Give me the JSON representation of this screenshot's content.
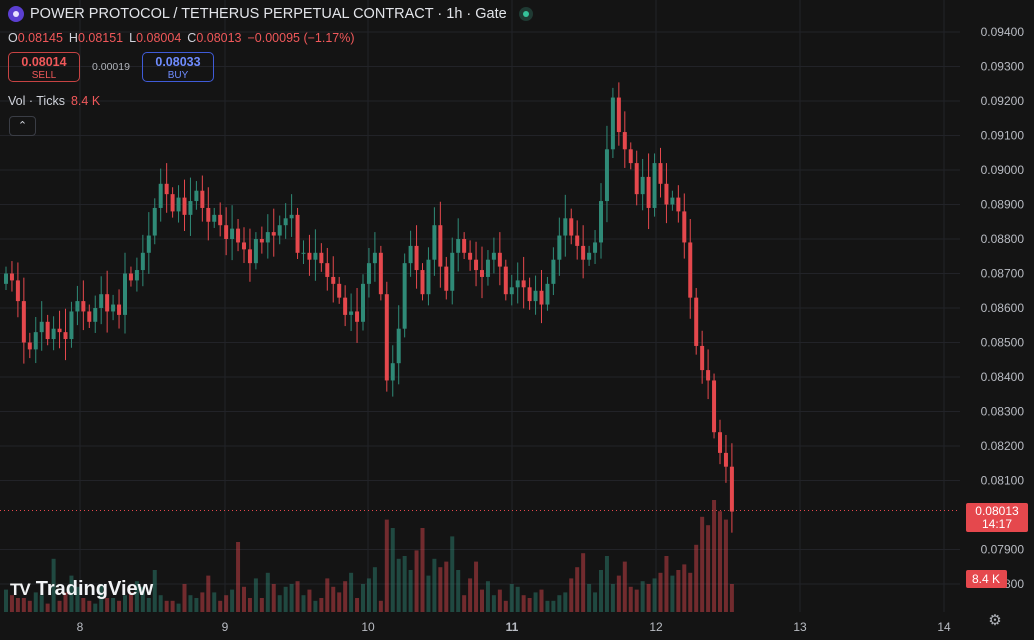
{
  "header": {
    "title": "POWER PROTOCOL / TETHERUS PERPETUAL CONTRACT · 1h · Gate",
    "ohlc": {
      "o_label": "O",
      "o": "0.08145",
      "h_label": "H",
      "h": "0.08151",
      "l_label": "L",
      "l": "0.08004",
      "c_label": "C",
      "c": "0.08013",
      "change": "−0.00095 (−1.17%)"
    }
  },
  "trade": {
    "sell_price": "0.08014",
    "sell_label": "SELL",
    "spread": "0.00019",
    "buy_price": "0.08033",
    "buy_label": "BUY"
  },
  "volume": {
    "label": "Vol · Ticks",
    "value": "8.4 K"
  },
  "collapse_icon": "chevron-up-icon",
  "branding": {
    "logo_text": "TradingView",
    "logo_mark": "TV"
  },
  "last_price": {
    "price": "0.08013",
    "countdown": "14:17",
    "volume_badge": "8.4 K"
  },
  "colors": {
    "up": "#2f8a77",
    "down": "#e5484d",
    "background": "#141414",
    "price_line": "#e5484d"
  },
  "chart_data": {
    "type": "candlestick",
    "interval": "1h",
    "y_ticks": [
      "0.09400",
      "0.09300",
      "0.09200",
      "0.09100",
      "0.09000",
      "0.08900",
      "0.08800",
      "0.08700",
      "0.08600",
      "0.08500",
      "0.08400",
      "0.08300",
      "0.08200",
      "0.08100",
      "0.07900",
      "0.07800"
    ],
    "x_ticks": [
      "8",
      "9",
      "10",
      "11",
      "12",
      "13",
      "14"
    ],
    "ylim": [
      0.0776,
      0.0947
    ],
    "grid": true,
    "closes": [
      0.087,
      0.0868,
      0.0862,
      0.085,
      0.0848,
      0.0853,
      0.0856,
      0.0851,
      0.0854,
      0.0853,
      0.0851,
      0.0859,
      0.0862,
      0.0859,
      0.0856,
      0.086,
      0.0864,
      0.0859,
      0.0861,
      0.0858,
      0.087,
      0.0868,
      0.0871,
      0.0876,
      0.0881,
      0.0889,
      0.0896,
      0.0893,
      0.0888,
      0.0892,
      0.0887,
      0.0891,
      0.0894,
      0.0889,
      0.0885,
      0.0887,
      0.0884,
      0.088,
      0.0883,
      0.0879,
      0.0877,
      0.0873,
      0.088,
      0.0879,
      0.0882,
      0.0881,
      0.0884,
      0.0886,
      0.0887,
      0.0876,
      0.0876,
      0.0874,
      0.0876,
      0.0873,
      0.0869,
      0.0867,
      0.0863,
      0.0858,
      0.0859,
      0.0856,
      0.0867,
      0.0873,
      0.0876,
      0.0864,
      0.0839,
      0.0844,
      0.0854,
      0.0873,
      0.0878,
      0.0871,
      0.0864,
      0.0874,
      0.0884,
      0.0872,
      0.0865,
      0.0876,
      0.088,
      0.0876,
      0.0874,
      0.0871,
      0.0869,
      0.0874,
      0.0876,
      0.0872,
      0.0864,
      0.0866,
      0.0868,
      0.0866,
      0.0862,
      0.0865,
      0.0861,
      0.0867,
      0.0874,
      0.0881,
      0.0886,
      0.0881,
      0.0878,
      0.0874,
      0.0876,
      0.0879,
      0.0891,
      0.0906,
      0.0921,
      0.0911,
      0.0906,
      0.0902,
      0.0893,
      0.0898,
      0.0889,
      0.0902,
      0.0896,
      0.089,
      0.0892,
      0.0888,
      0.0879,
      0.0863,
      0.0849,
      0.0842,
      0.0839,
      0.0824,
      0.0818,
      0.0814,
      0.0801
    ],
    "volumes": [
      0.8,
      0.6,
      0.5,
      0.5,
      0.4,
      0.7,
      0.6,
      0.3,
      1.9,
      0.4,
      0.7,
      1.3,
      0.9,
      0.5,
      0.4,
      0.3,
      1.0,
      0.5,
      0.5,
      0.4,
      0.6,
      0.7,
      1.1,
      0.9,
      0.5,
      1.5,
      0.6,
      0.4,
      0.4,
      0.3,
      1.0,
      0.6,
      0.5,
      0.7,
      1.3,
      0.7,
      0.4,
      0.6,
      0.8,
      2.5,
      0.9,
      0.5,
      1.2,
      0.5,
      1.4,
      1.0,
      0.6,
      0.9,
      1.0,
      1.1,
      0.6,
      0.8,
      0.4,
      0.5,
      1.2,
      0.9,
      0.7,
      1.1,
      1.4,
      0.5,
      1.0,
      1.2,
      1.6,
      0.4,
      3.3,
      3.0,
      1.9,
      2.0,
      1.5,
      2.2,
      3.0,
      1.3,
      1.9,
      1.6,
      1.8,
      2.7,
      1.5,
      0.6,
      1.2,
      1.8,
      0.8,
      1.1,
      0.6,
      0.8,
      0.4,
      1.0,
      0.9,
      0.6,
      0.5,
      0.7,
      0.8,
      0.4,
      0.4,
      0.6,
      0.7,
      1.2,
      1.6,
      2.1,
      1.0,
      0.7,
      1.5,
      2.0,
      1.0,
      1.3,
      1.8,
      0.9,
      0.8,
      1.1,
      1.0,
      1.2,
      1.4,
      2.0,
      1.3,
      1.5,
      1.7,
      1.4,
      2.4,
      3.4,
      3.1,
      4.0,
      3.6,
      3.3,
      1.0
    ]
  }
}
